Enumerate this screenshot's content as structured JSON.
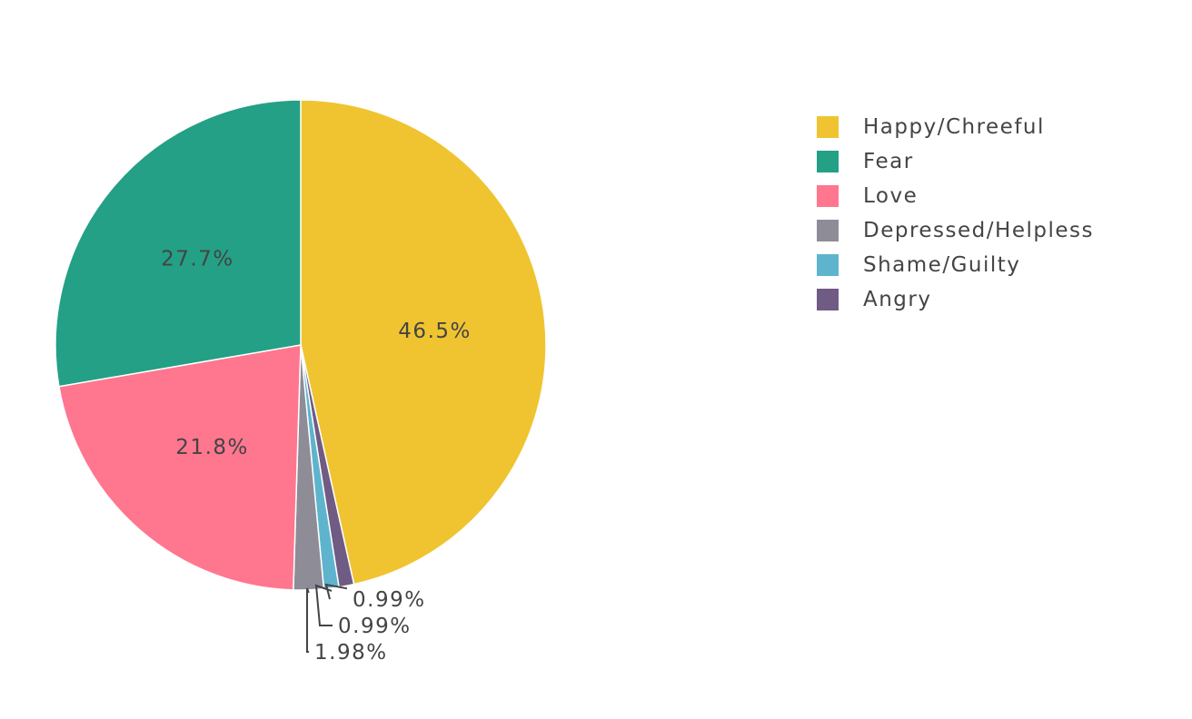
{
  "chart_data": {
    "type": "pie",
    "slices": [
      {
        "label": "Happy/Chreeful",
        "value": 46.5,
        "text": "46.5%",
        "color": "#F0C431"
      },
      {
        "label": "Angry",
        "value": 0.99,
        "text": "0.99%",
        "color": "#6F5B83"
      },
      {
        "label": "Shame/Guilty",
        "value": 0.99,
        "text": "0.99%",
        "color": "#5FB4CD"
      },
      {
        "label": "Depressed/Helpless",
        "value": 1.98,
        "text": "1.98%",
        "color": "#8D8C97"
      },
      {
        "label": "Love",
        "value": 21.8,
        "text": "21.8%",
        "color": "#FF768F"
      },
      {
        "label": "Fear",
        "value": 27.7,
        "text": "27.7%",
        "color": "#23A085"
      }
    ],
    "legend": {
      "position": "top-right",
      "items": [
        "Happy/Chreeful",
        "Fear",
        "Love",
        "Depressed/Helpless",
        "Shame/Guilty",
        "Angry"
      ]
    },
    "direction": "clockwise",
    "start": "12 o'clock"
  }
}
